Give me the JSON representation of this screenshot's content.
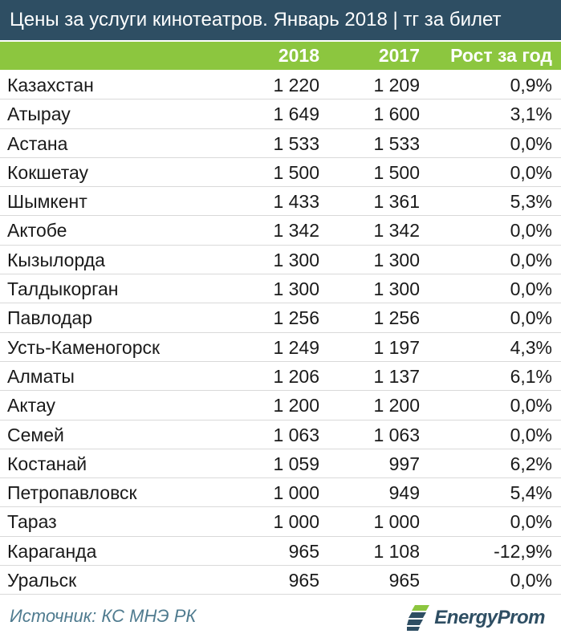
{
  "title": "Цены за услуги кинотеатров. Январь 2018 | тг за билет",
  "columns": {
    "year_a": "2018",
    "year_b": "2017",
    "growth": "Рост за год"
  },
  "chart_data": {
    "type": "table",
    "title": "Цены за услуги кинотеатров. Январь 2018 | тг за билет",
    "columns": [
      "",
      "2018",
      "2017",
      "Рост за год"
    ],
    "rows": [
      [
        "Казахстан",
        "1 220",
        "1 209",
        "0,9%"
      ],
      [
        "Атырау",
        "1 649",
        "1 600",
        "3,1%"
      ],
      [
        "Астана",
        "1 533",
        "1 533",
        "0,0%"
      ],
      [
        "Кокшетау",
        "1 500",
        "1 500",
        "0,0%"
      ],
      [
        "Шымкент",
        "1 433",
        "1 361",
        "5,3%"
      ],
      [
        "Актобе",
        "1 342",
        "1 342",
        "0,0%"
      ],
      [
        "Кызылорда",
        "1 300",
        "1 300",
        "0,0%"
      ],
      [
        "Талдыкорган",
        "1 300",
        "1 300",
        "0,0%"
      ],
      [
        "Павлодар",
        "1 256",
        "1 256",
        "0,0%"
      ],
      [
        "Усть-Каменогорск",
        "1 249",
        "1 197",
        "4,3%"
      ],
      [
        "Алматы",
        "1 206",
        "1 137",
        "6,1%"
      ],
      [
        "Актау",
        "1 200",
        "1 200",
        "0,0%"
      ],
      [
        "Семей",
        "1 063",
        "1 063",
        "0,0%"
      ],
      [
        "Костанай",
        "1 059",
        "997",
        "6,2%"
      ],
      [
        "Петропавловск",
        "1 000",
        "949",
        "5,4%"
      ],
      [
        "Тараз",
        "1 000",
        "1 000",
        "0,0%"
      ],
      [
        "Караганда",
        "965",
        "1 108",
        "-12,9%"
      ],
      [
        "Уральск",
        "965",
        "965",
        "0,0%"
      ]
    ]
  },
  "source": "Источник: КС МНЭ РК",
  "logo": {
    "icon": "energyprom-logo-icon",
    "text": "EnergyProm"
  },
  "colors": {
    "title_bg": "#2e4e63",
    "header_bg": "#8cc63f",
    "source_text": "#4f7b8f"
  }
}
